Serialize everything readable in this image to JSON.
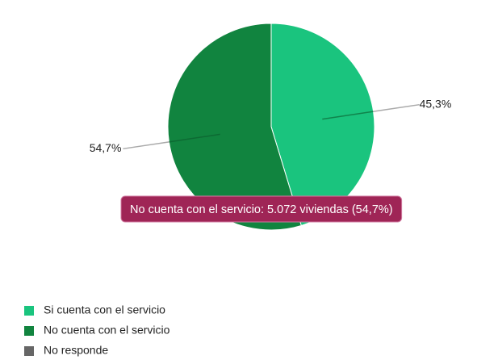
{
  "chart_data": {
    "type": "pie",
    "categories": [
      "Si cuenta con el servicio",
      "No cuenta con el servicio",
      "No responde"
    ],
    "values": [
      45.3,
      54.7,
      0
    ],
    "value_labels": [
      "45,3%",
      "54,7%",
      null
    ],
    "colors": [
      "#1ac47e",
      "#11843f",
      "#666666"
    ],
    "legend": "bottom-left",
    "annotations": [
      "No cuenta con el servicio: 5.072 viviendas (54,7%)"
    ]
  }
}
